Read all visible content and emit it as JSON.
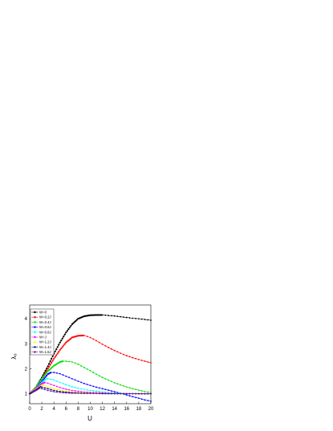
{
  "chart_data": {
    "type": "line",
    "title": "",
    "xlabel": "U",
    "ylabel": "λ₀",
    "xlim": [
      0,
      20
    ],
    "ylim": [
      0.6,
      4.55
    ],
    "x_ticks": [
      "0",
      "2",
      "4",
      "6",
      "8",
      "10",
      "12",
      "14",
      "16",
      "18",
      "20"
    ],
    "y_ticks": [
      "1",
      "2",
      "3",
      "4"
    ],
    "grid": false,
    "legend_position": "top-left",
    "series": [
      {
        "name": "W=0",
        "color": "#000000",
        "peak": [
          12.0,
          4.15
        ],
        "x": [
          0,
          1,
          2,
          3,
          4,
          5,
          6,
          7,
          8,
          9,
          10,
          11,
          12,
          13,
          14,
          15,
          16,
          17,
          18,
          19,
          20
        ],
        "y": [
          1.0,
          1.25,
          1.65,
          2.1,
          2.6,
          3.05,
          3.45,
          3.78,
          4.0,
          4.1,
          4.14,
          4.15,
          4.15,
          4.13,
          4.11,
          4.08,
          4.05,
          4.02,
          4.0,
          3.97,
          3.94
        ]
      },
      {
        "name": "W=0.2J",
        "color": "#ff0000",
        "peak": [
          9.0,
          3.33
        ],
        "x": [
          0,
          1,
          2,
          3,
          4,
          5,
          6,
          7,
          8,
          9,
          10,
          11,
          12,
          13,
          14,
          15,
          16,
          17,
          18,
          19,
          20
        ],
        "y": [
          1.0,
          1.25,
          1.6,
          2.0,
          2.4,
          2.75,
          3.05,
          3.25,
          3.32,
          3.33,
          3.25,
          3.12,
          2.98,
          2.85,
          2.73,
          2.62,
          2.52,
          2.44,
          2.37,
          2.3,
          2.24
        ]
      },
      {
        "name": "W=0.4J",
        "color": "#00dd00",
        "peak": [
          5.5,
          2.3
        ],
        "x": [
          0,
          1,
          2,
          3,
          4,
          5,
          6,
          7,
          8,
          9,
          10,
          11,
          12,
          13,
          14,
          15,
          16,
          17,
          18,
          19,
          20
        ],
        "y": [
          1.0,
          1.25,
          1.6,
          1.9,
          2.12,
          2.27,
          2.3,
          2.27,
          2.18,
          2.05,
          1.92,
          1.78,
          1.65,
          1.54,
          1.44,
          1.35,
          1.27,
          1.2,
          1.14,
          1.09,
          1.05
        ]
      },
      {
        "name": "W=0.6J",
        "color": "#0000ff",
        "peak": [
          3.5,
          1.85
        ],
        "x": [
          0,
          1,
          2,
          3,
          4,
          5,
          6,
          7,
          8,
          9,
          10,
          11,
          12,
          13,
          14,
          15,
          16,
          17,
          18,
          19,
          20
        ],
        "y": [
          1.0,
          1.2,
          1.5,
          1.78,
          1.85,
          1.8,
          1.7,
          1.6,
          1.5,
          1.41,
          1.33,
          1.26,
          1.2,
          1.14,
          1.08,
          1.02,
          0.95,
          0.88,
          0.82,
          0.75,
          0.7
        ]
      },
      {
        "name": "W=0.8J",
        "color": "#00ffff",
        "peak": [
          2.8,
          1.6
        ],
        "x": [
          0,
          1,
          2,
          3,
          4,
          5,
          6,
          7,
          8,
          9,
          10,
          11,
          12,
          13,
          14,
          15,
          16,
          17,
          18,
          19,
          20
        ],
        "y": [
          1.0,
          1.2,
          1.45,
          1.6,
          1.55,
          1.45,
          1.36,
          1.28,
          1.22,
          1.17,
          1.13,
          1.1,
          1.07,
          1.05,
          1.03,
          1.02,
          1.01,
          1.0,
          1.0,
          0.99,
          0.99
        ]
      },
      {
        "name": "W=J",
        "color": "#ff00ff",
        "peak": [
          2.5,
          1.45
        ],
        "x": [
          0,
          1,
          2,
          3,
          4,
          5,
          6,
          7,
          8,
          9,
          10,
          11,
          12,
          13,
          14,
          15,
          16,
          17,
          18,
          19,
          20
        ],
        "y": [
          1.0,
          1.2,
          1.4,
          1.42,
          1.33,
          1.25,
          1.18,
          1.13,
          1.1,
          1.07,
          1.05,
          1.04,
          1.03,
          1.02,
          1.01,
          1.0,
          1.0,
          1.0,
          0.99,
          0.99,
          0.99
        ]
      },
      {
        "name": "W=1.2J",
        "color": "#ffff00",
        "peak": [
          2.2,
          1.35
        ],
        "x": [
          0,
          1,
          2,
          3,
          4,
          5,
          6,
          7,
          8,
          9,
          10,
          11,
          12,
          13,
          14,
          15,
          16,
          17,
          18,
          19,
          20
        ],
        "y": [
          1.0,
          1.18,
          1.33,
          1.28,
          1.2,
          1.14,
          1.1,
          1.07,
          1.05,
          1.04,
          1.03,
          1.02,
          1.01,
          1.01,
          1.0,
          1.0,
          1.0,
          1.0,
          1.0,
          1.0,
          1.0
        ]
      },
      {
        "name": "W=1.4J",
        "color": "#000080",
        "peak": [
          1.8,
          1.28
        ],
        "x": [
          0,
          1,
          2,
          3,
          4,
          5,
          6,
          7,
          8,
          9,
          10,
          11,
          12,
          13,
          14,
          15,
          16,
          17,
          18,
          19,
          20
        ],
        "y": [
          1.0,
          1.15,
          1.26,
          1.2,
          1.13,
          1.09,
          1.06,
          1.04,
          1.03,
          1.02,
          1.02,
          1.01,
          1.01,
          1.0,
          1.0,
          1.0,
          1.0,
          1.0,
          1.0,
          1.0,
          1.0
        ]
      },
      {
        "name": "W=1.6J",
        "color": "#6b0ea0",
        "peak": [
          1.6,
          1.22
        ],
        "x": [
          0,
          1,
          2,
          3,
          4,
          5,
          6,
          7,
          8,
          9,
          10,
          11,
          12,
          13,
          14,
          15,
          16,
          17,
          18,
          19,
          20
        ],
        "y": [
          1.0,
          1.13,
          1.2,
          1.13,
          1.08,
          1.05,
          1.03,
          1.02,
          1.02,
          1.01,
          1.01,
          1.01,
          1.0,
          1.0,
          1.0,
          1.0,
          1.0,
          1.0,
          1.0,
          1.0,
          1.0
        ]
      }
    ]
  }
}
